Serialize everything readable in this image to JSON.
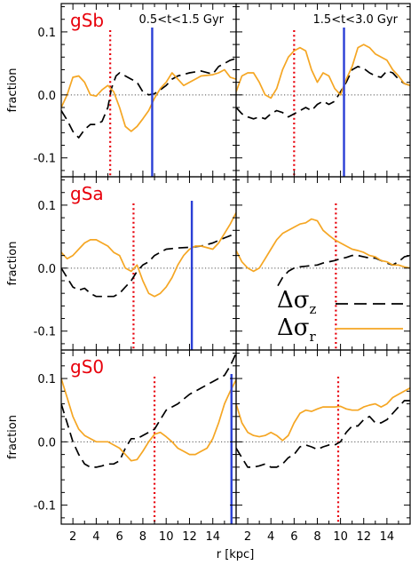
{
  "figure": {
    "ylabel": "fraction",
    "xlabel": "r [kpc]",
    "colors": {
      "sigma_z": "#000000",
      "sigma_r": "#f5a623",
      "r_ratio": "#e8000b",
      "r_bar": "#2a3fd6",
      "zero": "#555555",
      "label": "#e8000b"
    }
  },
  "legend": {
    "entries": [
      {
        "symbol": "Δσ",
        "subscript": "z",
        "style": "dashed",
        "color": "#000000"
      },
      {
        "symbol": "Δσ",
        "subscript": "r",
        "style": "solid",
        "color": "#f5a623"
      }
    ]
  },
  "chart_data": [
    {
      "type": "line",
      "model": "gSb",
      "time": "0.5<t<1.5 Gyr",
      "row": 0,
      "col": 0,
      "xlim": [
        1,
        16
      ],
      "ylim": [
        -0.13,
        0.145
      ],
      "xticks": [
        2,
        4,
        6,
        8,
        10,
        12,
        14
      ],
      "yticks": [
        -0.1,
        0.0,
        0.1
      ],
      "yticklabels": [
        "-0.1",
        "0.0",
        "0.1"
      ],
      "vline_dotted": 5.2,
      "vline_solid": 8.8,
      "series": [
        {
          "key": "sigma_z",
          "x": [
            1.0,
            1.5,
            2.0,
            2.5,
            3.0,
            3.5,
            4.0,
            4.5,
            5.0,
            5.3,
            5.7,
            6.0,
            6.5,
            7.0,
            7.5,
            8.0,
            8.5,
            9.0,
            9.5,
            10.0,
            10.5,
            11.0,
            12.0,
            13.0,
            14.0,
            14.5,
            15.0,
            15.5,
            16.0
          ],
          "y": [
            -0.025,
            -0.04,
            -0.058,
            -0.068,
            -0.055,
            -0.047,
            -0.047,
            -0.042,
            -0.02,
            0.01,
            0.03,
            0.035,
            0.03,
            0.025,
            0.02,
            0.005,
            0.0,
            0.002,
            0.008,
            0.015,
            0.025,
            0.03,
            0.035,
            0.038,
            0.033,
            0.045,
            0.05,
            0.055,
            0.058
          ]
        },
        {
          "key": "sigma_r",
          "x": [
            1.0,
            1.5,
            2.0,
            2.5,
            3.0,
            3.5,
            4.0,
            4.5,
            5.0,
            5.5,
            6.0,
            6.5,
            7.0,
            7.5,
            8.0,
            8.5,
            9.0,
            9.5,
            10.0,
            10.5,
            11.0,
            11.5,
            12.0,
            12.5,
            13.0,
            14.0,
            14.5,
            15.0,
            15.5,
            16.0
          ],
          "y": [
            -0.02,
            0.0,
            0.028,
            0.03,
            0.02,
            0.0,
            -0.002,
            0.008,
            0.015,
            0.005,
            -0.02,
            -0.05,
            -0.058,
            -0.05,
            -0.038,
            -0.025,
            -0.005,
            0.01,
            0.02,
            0.035,
            0.025,
            0.015,
            0.02,
            0.025,
            0.03,
            0.032,
            0.035,
            0.04,
            0.028,
            0.025
          ]
        }
      ]
    },
    {
      "type": "line",
      "model": "",
      "time": "1.5<t<3.0 Gyr",
      "row": 0,
      "col": 1,
      "xlim": [
        1,
        16
      ],
      "ylim": [
        -0.13,
        0.145
      ],
      "xticks": [
        2,
        4,
        6,
        8,
        10,
        12,
        14
      ],
      "yticks": [
        -0.1,
        0.0,
        0.1
      ],
      "yticklabels": [
        "",
        "",
        ""
      ],
      "vline_dotted": 6.0,
      "vline_solid": 10.3,
      "series": [
        {
          "key": "sigma_z",
          "x": [
            1.0,
            1.5,
            2.0,
            2.5,
            3.0,
            3.5,
            4.0,
            4.5,
            5.0,
            5.5,
            6.0,
            6.5,
            7.0,
            7.5,
            8.0,
            8.5,
            9.0,
            9.5,
            10.0,
            10.5,
            11.0,
            11.5,
            12.0,
            12.5,
            13.0,
            13.5,
            14.0,
            14.5,
            15.0,
            15.5,
            16.0
          ],
          "y": [
            -0.02,
            -0.03,
            -0.035,
            -0.038,
            -0.035,
            -0.038,
            -0.03,
            -0.025,
            -0.028,
            -0.035,
            -0.03,
            -0.025,
            -0.02,
            -0.025,
            -0.015,
            -0.01,
            -0.015,
            -0.01,
            0.005,
            0.02,
            0.04,
            0.045,
            0.042,
            0.035,
            0.03,
            0.028,
            0.038,
            0.035,
            0.025,
            0.018,
            0.015
          ]
        },
        {
          "key": "sigma_r",
          "x": [
            1.0,
            1.5,
            2.0,
            2.5,
            3.0,
            3.5,
            4.0,
            4.5,
            5.0,
            5.5,
            6.0,
            6.5,
            7.0,
            7.5,
            8.0,
            8.5,
            9.0,
            9.5,
            10.0,
            10.5,
            11.0,
            11.5,
            12.0,
            12.5,
            13.0,
            14.0,
            14.5,
            15.0,
            15.5,
            16.0
          ],
          "y": [
            0.005,
            0.03,
            0.035,
            0.035,
            0.02,
            0.0,
            -0.005,
            0.01,
            0.04,
            0.06,
            0.07,
            0.075,
            0.07,
            0.04,
            0.02,
            0.035,
            0.03,
            0.01,
            0.0,
            0.025,
            0.045,
            0.075,
            0.08,
            0.075,
            0.065,
            0.055,
            0.04,
            0.03,
            0.018,
            0.015
          ]
        }
      ]
    },
    {
      "type": "line",
      "model": "gSa",
      "time": "",
      "row": 1,
      "col": 0,
      "xlim": [
        1,
        16
      ],
      "ylim": [
        -0.13,
        0.145
      ],
      "xticks": [
        2,
        4,
        6,
        8,
        10,
        12,
        14
      ],
      "yticks": [
        -0.1,
        0.0,
        0.1
      ],
      "yticklabels": [
        "-0.1",
        "0.0",
        "0.1"
      ],
      "vline_dotted": 7.2,
      "vline_solid": 12.2,
      "series": [
        {
          "key": "sigma_z",
          "x": [
            1.0,
            1.5,
            2.0,
            2.5,
            3.0,
            3.5,
            4.0,
            4.5,
            5.0,
            5.5,
            6.0,
            6.5,
            7.0,
            7.5,
            8.0,
            8.5,
            9.0,
            9.5,
            10.0,
            11.0,
            12.0,
            13.0,
            14.0,
            15.0,
            16.0
          ],
          "y": [
            0.0,
            -0.015,
            -0.03,
            -0.035,
            -0.032,
            -0.04,
            -0.045,
            -0.045,
            -0.045,
            -0.045,
            -0.04,
            -0.03,
            -0.02,
            -0.005,
            0.005,
            0.01,
            0.02,
            0.025,
            0.03,
            0.032,
            0.033,
            0.035,
            0.04,
            0.048,
            0.055
          ]
        },
        {
          "key": "sigma_r",
          "x": [
            1.0,
            1.5,
            2.0,
            2.5,
            3.0,
            3.5,
            4.0,
            4.5,
            5.0,
            5.5,
            6.0,
            6.5,
            7.0,
            7.5,
            8.0,
            8.5,
            9.0,
            9.5,
            10.0,
            10.5,
            11.0,
            11.5,
            12.0,
            12.5,
            13.0,
            14.0,
            14.5,
            15.0,
            15.5,
            16.0
          ],
          "y": [
            0.025,
            0.015,
            0.02,
            0.03,
            0.04,
            0.045,
            0.045,
            0.04,
            0.035,
            0.025,
            0.02,
            0.0,
            -0.005,
            0.005,
            -0.02,
            -0.04,
            -0.045,
            -0.04,
            -0.03,
            -0.015,
            0.005,
            0.02,
            0.03,
            0.035,
            0.035,
            0.03,
            0.04,
            0.055,
            0.07,
            0.088
          ]
        }
      ]
    },
    {
      "type": "line",
      "model": "",
      "time": "",
      "row": 1,
      "col": 1,
      "xlim": [
        1,
        16
      ],
      "ylim": [
        -0.13,
        0.145
      ],
      "xticks": [
        2,
        4,
        6,
        8,
        10,
        12,
        14
      ],
      "yticks": [
        -0.1,
        0.0,
        0.1
      ],
      "yticklabels": [
        "",
        "",
        ""
      ],
      "vline_dotted": 9.6,
      "vline_solid": null,
      "series": [
        {
          "key": "sigma_z",
          "x": [
            4.6,
            5.0,
            5.5,
            6.0,
            6.5,
            7.0,
            7.5,
            8.0,
            8.5,
            9.0,
            9.5,
            10.0,
            10.5,
            11.0,
            11.5,
            12.0,
            12.5,
            13.0,
            13.5,
            14.0,
            14.5,
            15.0,
            15.5,
            16.0
          ],
          "y": [
            -0.028,
            -0.015,
            -0.005,
            0.0,
            0.002,
            0.003,
            0.004,
            0.005,
            0.008,
            0.01,
            0.012,
            0.015,
            0.017,
            0.02,
            0.02,
            0.018,
            0.016,
            0.016,
            0.012,
            0.008,
            0.005,
            0.01,
            0.018,
            0.02
          ]
        },
        {
          "key": "sigma_r",
          "x": [
            1.0,
            1.5,
            2.0,
            2.5,
            3.0,
            3.5,
            4.0,
            4.5,
            5.0,
            5.5,
            6.0,
            6.5,
            7.0,
            7.5,
            8.0,
            8.5,
            9.0,
            9.5,
            10.0,
            10.5,
            11.0,
            11.5,
            12.0,
            12.5,
            13.0,
            13.5,
            14.0,
            14.5,
            15.0,
            15.5,
            16.0
          ],
          "y": [
            0.028,
            0.01,
            0.0,
            -0.005,
            0.0,
            0.015,
            0.03,
            0.045,
            0.055,
            0.06,
            0.065,
            0.07,
            0.072,
            0.078,
            0.075,
            0.06,
            0.052,
            0.045,
            0.04,
            0.035,
            0.03,
            0.028,
            0.025,
            0.02,
            0.018,
            0.012,
            0.01,
            0.005,
            0.005,
            0.002,
            0.0
          ]
        }
      ]
    },
    {
      "type": "line",
      "model": "gS0",
      "time": "",
      "row": 2,
      "col": 0,
      "xlim": [
        1,
        16
      ],
      "ylim": [
        -0.13,
        0.145
      ],
      "xticks": [
        2,
        4,
        6,
        8,
        10,
        12,
        14
      ],
      "yticks": [
        -0.1,
        0.0,
        0.1
      ],
      "yticklabels": [
        "-0.1",
        "0.0",
        "0.1"
      ],
      "vline_dotted": 9.0,
      "vline_solid": 15.6,
      "series": [
        {
          "key": "sigma_z",
          "x": [
            1.0,
            1.5,
            2.0,
            2.5,
            3.0,
            3.5,
            4.0,
            4.5,
            5.0,
            5.5,
            6.0,
            6.5,
            7.0,
            7.5,
            8.0,
            8.5,
            9.0,
            9.5,
            10.0,
            11.0,
            12.0,
            13.0,
            14.0,
            15.0,
            15.5,
            16.0
          ],
          "y": [
            0.06,
            0.03,
            0.0,
            -0.02,
            -0.035,
            -0.04,
            -0.04,
            -0.038,
            -0.035,
            -0.035,
            -0.03,
            -0.01,
            0.005,
            0.005,
            0.01,
            0.015,
            0.02,
            0.035,
            0.05,
            0.06,
            0.075,
            0.085,
            0.095,
            0.105,
            0.12,
            0.14
          ]
        },
        {
          "key": "sigma_r",
          "x": [
            1.0,
            1.5,
            2.0,
            2.5,
            3.0,
            3.5,
            4.0,
            4.5,
            5.0,
            5.5,
            6.0,
            6.5,
            7.0,
            7.5,
            8.0,
            8.5,
            9.0,
            9.5,
            10.0,
            10.5,
            11.0,
            11.5,
            12.0,
            12.5,
            13.0,
            13.5,
            14.0,
            14.5,
            15.0,
            15.5,
            16.0
          ],
          "y": [
            0.1,
            0.07,
            0.04,
            0.02,
            0.01,
            0.005,
            0.0,
            0.0,
            0.0,
            -0.005,
            -0.01,
            -0.02,
            -0.03,
            -0.028,
            -0.015,
            0.0,
            0.012,
            0.015,
            0.008,
            0.0,
            -0.01,
            -0.015,
            -0.02,
            -0.02,
            -0.015,
            -0.01,
            0.005,
            0.03,
            0.06,
            0.08,
            0.098
          ]
        }
      ]
    },
    {
      "type": "line",
      "model": "",
      "time": "",
      "row": 2,
      "col": 1,
      "xlim": [
        1,
        16
      ],
      "ylim": [
        -0.13,
        0.145
      ],
      "xticks": [
        2,
        4,
        6,
        8,
        10,
        12,
        14
      ],
      "yticks": [
        -0.1,
        0.0,
        0.1
      ],
      "yticklabels": [
        "",
        "",
        ""
      ],
      "vline_dotted": 9.8,
      "vline_solid": null,
      "series": [
        {
          "key": "sigma_z",
          "x": [
            1.0,
            1.5,
            2.0,
            2.5,
            3.0,
            3.5,
            4.0,
            4.5,
            5.0,
            5.5,
            6.0,
            6.5,
            7.0,
            7.5,
            8.0,
            8.5,
            9.0,
            9.5,
            10.0,
            10.5,
            11.0,
            11.5,
            12.0,
            12.5,
            13.0,
            13.5,
            14.0,
            14.5,
            15.0,
            15.5,
            16.0
          ],
          "y": [
            -0.01,
            -0.025,
            -0.04,
            -0.04,
            -0.038,
            -0.035,
            -0.04,
            -0.04,
            -0.035,
            -0.025,
            -0.02,
            -0.008,
            -0.005,
            -0.008,
            -0.012,
            -0.008,
            -0.005,
            -0.005,
            0.0,
            0.015,
            0.025,
            0.025,
            0.035,
            0.04,
            0.03,
            0.03,
            0.035,
            0.045,
            0.055,
            0.065,
            0.065
          ]
        },
        {
          "key": "sigma_r",
          "x": [
            1.0,
            1.5,
            2.0,
            2.5,
            3.0,
            3.5,
            4.0,
            4.5,
            5.0,
            5.5,
            6.0,
            6.5,
            7.0,
            7.5,
            8.0,
            8.5,
            9.0,
            9.5,
            10.0,
            10.5,
            11.0,
            11.5,
            12.0,
            12.5,
            13.0,
            13.5,
            14.0,
            14.5,
            15.0,
            15.5,
            16.0
          ],
          "y": [
            0.06,
            0.03,
            0.015,
            0.01,
            0.008,
            0.01,
            0.015,
            0.01,
            0.002,
            0.01,
            0.03,
            0.045,
            0.05,
            0.048,
            0.052,
            0.055,
            0.055,
            0.055,
            0.056,
            0.052,
            0.05,
            0.05,
            0.055,
            0.058,
            0.06,
            0.055,
            0.06,
            0.07,
            0.075,
            0.08,
            0.085
          ]
        }
      ]
    }
  ]
}
